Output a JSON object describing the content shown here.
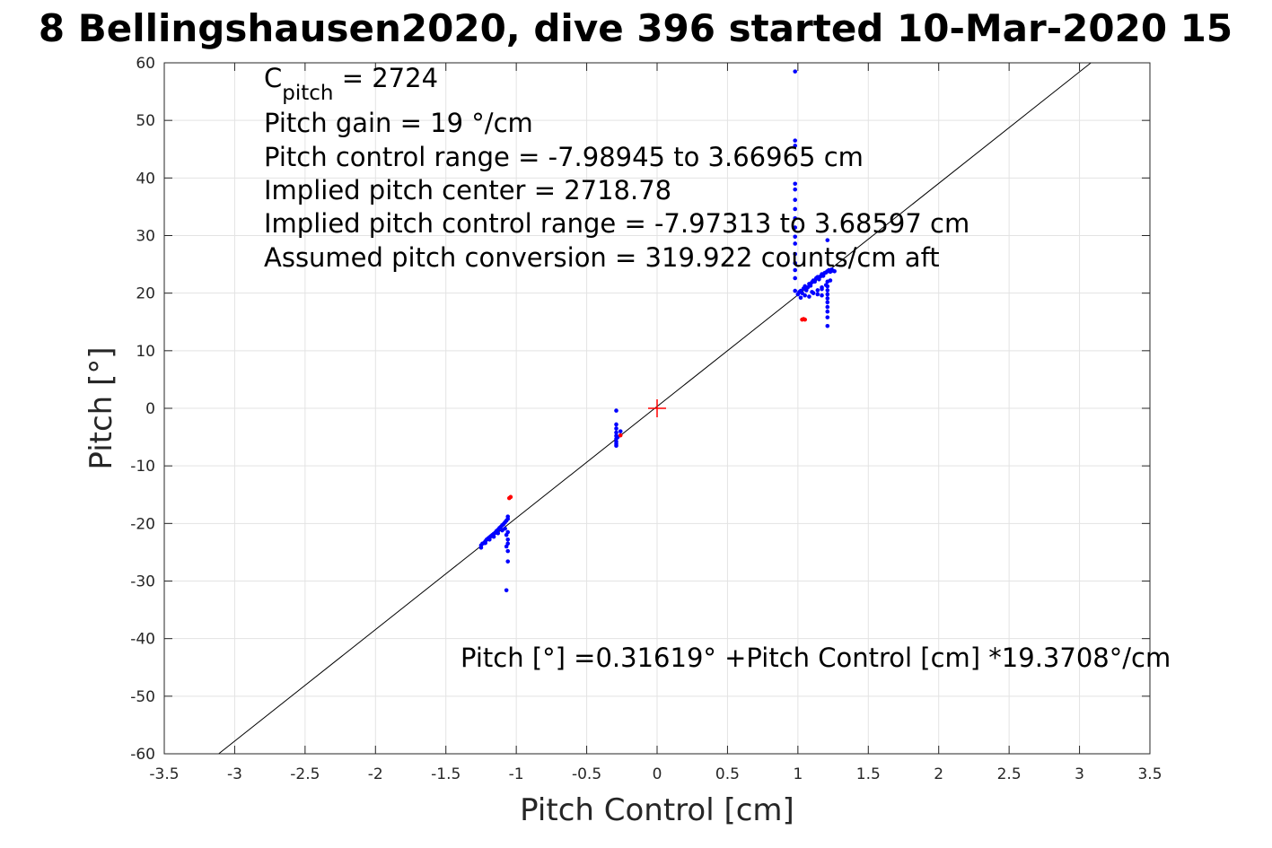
{
  "chart_data": {
    "type": "scatter",
    "title": "8 Bellingshausen2020, dive 396 started 10-Mar-2020 15",
    "xlabel": "Pitch Control [cm]",
    "ylabel": "Pitch [°]",
    "xlim": [
      -3.5,
      3.5
    ],
    "ylim": [
      -60,
      60
    ],
    "xticks": [
      -3.5,
      -3,
      -2.5,
      -2,
      -1.5,
      -1,
      -0.5,
      0,
      0.5,
      1,
      1.5,
      2,
      2.5,
      3,
      3.5
    ],
    "yticks": [
      60,
      50,
      40,
      30,
      20,
      10,
      0,
      -10,
      -20,
      -30,
      -40,
      -50,
      -60
    ],
    "grid": true,
    "annotations": {
      "cpitch_base": "C",
      "cpitch_sub": "pitch",
      "cpitch_value": " = 2724",
      "line2": "Pitch gain = 19 °/cm",
      "line3": "Pitch control range = -7.98945 to 3.66965 cm",
      "line4": "Implied pitch center = 2718.78",
      "line5": "Implied pitch control range = -7.97313 to 3.68597 cm",
      "line6": "Assumed pitch conversion = 319.922 counts/cm aft",
      "fit": "Pitch [°] =0.31619° +Pitch Control [cm] *19.3708°/cm"
    },
    "fit_line": {
      "intercept": 0.31619,
      "slope": 19.3708,
      "color": "#000000"
    },
    "center_marker": {
      "x": 0,
      "y": 0,
      "color": "#ff0000"
    },
    "series": [
      {
        "color": "#0000ff",
        "x": [
          -1.25,
          -1.24,
          -1.23,
          -1.22,
          -1.21,
          -1.2,
          -1.19,
          -1.18,
          -1.17,
          -1.16,
          -1.15,
          -1.14,
          -1.13,
          -1.12,
          -1.11,
          -1.1,
          -1.09,
          -1.08,
          -1.07,
          -1.06,
          -1.25,
          -1.22,
          -1.19,
          -1.16,
          -1.13,
          -1.1,
          -1.08,
          -1.07,
          -1.06,
          -1.06,
          -1.07,
          -1.06,
          -1.06,
          -1.07,
          -1.06,
          -1.06,
          -0.29,
          -0.29,
          -0.29,
          -0.29,
          -0.29,
          -0.29,
          -0.29,
          -0.29,
          -0.29,
          -0.28,
          -0.26,
          0.98,
          0.98,
          0.98,
          0.98,
          0.98,
          0.98,
          0.98,
          0.98,
          0.98,
          0.98,
          0.98,
          0.98,
          0.98,
          0.98,
          0.98,
          0.98,
          1.0,
          1.01,
          1.02,
          1.03,
          1.04,
          1.05,
          1.06,
          1.07,
          1.08,
          1.09,
          1.1,
          1.11,
          1.12,
          1.13,
          1.14,
          1.15,
          1.16,
          1.17,
          1.18,
          1.19,
          1.2,
          1.21,
          1.22,
          1.23,
          1.24,
          1.25,
          1.26,
          1.02,
          1.05,
          1.08,
          1.11,
          1.14,
          1.17,
          1.2,
          1.23,
          1.21,
          1.21,
          1.21,
          1.21,
          1.21,
          1.21,
          1.21,
          1.21,
          1.21,
          1.21,
          1.21,
          1.17,
          1.17,
          1.14,
          1.1
        ],
        "y": [
          -23.8,
          -23.5,
          -23.4,
          -23.1,
          -22.8,
          -22.6,
          -22.4,
          -22.2,
          -22.0,
          -21.8,
          -21.6,
          -21.3,
          -21.1,
          -20.8,
          -20.6,
          -20.3,
          -20.1,
          -19.8,
          -19.5,
          -19.2,
          -24.2,
          -23.4,
          -22.8,
          -22.3,
          -21.7,
          -21.2,
          -20.9,
          -22.0,
          -22.8,
          -23.5,
          -24.0,
          -24.8,
          -26.6,
          -31.6,
          -21.5,
          -18.8,
          -0.4,
          -2.8,
          -3.5,
          -4.2,
          -4.8,
          -5.3,
          -5.8,
          -6.2,
          -6.5,
          -5.0,
          -4.0,
          58.5,
          46.5,
          45.6,
          39.0,
          38.0,
          36.2,
          34.6,
          33.0,
          31.4,
          29.8,
          28.6,
          26.8,
          25.2,
          24.0,
          22.6,
          20.4,
          19.8,
          20.2,
          20.4,
          20.0,
          20.8,
          21.2,
          20.5,
          21.0,
          21.6,
          21.3,
          21.9,
          22.2,
          22.0,
          22.6,
          22.8,
          22.4,
          22.9,
          23.3,
          23.0,
          23.5,
          23.6,
          23.8,
          24.0,
          23.7,
          24.1,
          23.9,
          23.8,
          19.2,
          19.6,
          19.4,
          20.0,
          20.5,
          20.7,
          21.4,
          22.2,
          29.2,
          22.0,
          21.2,
          20.5,
          19.8,
          19.1,
          18.4,
          17.6,
          16.8,
          15.8,
          14.3,
          21.0,
          19.6,
          19.8,
          20.2
        ]
      },
      {
        "color": "#ff0000",
        "x": [
          -1.04,
          -1.05,
          -0.26,
          1.03,
          1.04,
          1.05
        ],
        "y": [
          -15.4,
          -15.6,
          -4.7,
          15.4,
          15.5,
          15.4
        ]
      }
    ]
  }
}
